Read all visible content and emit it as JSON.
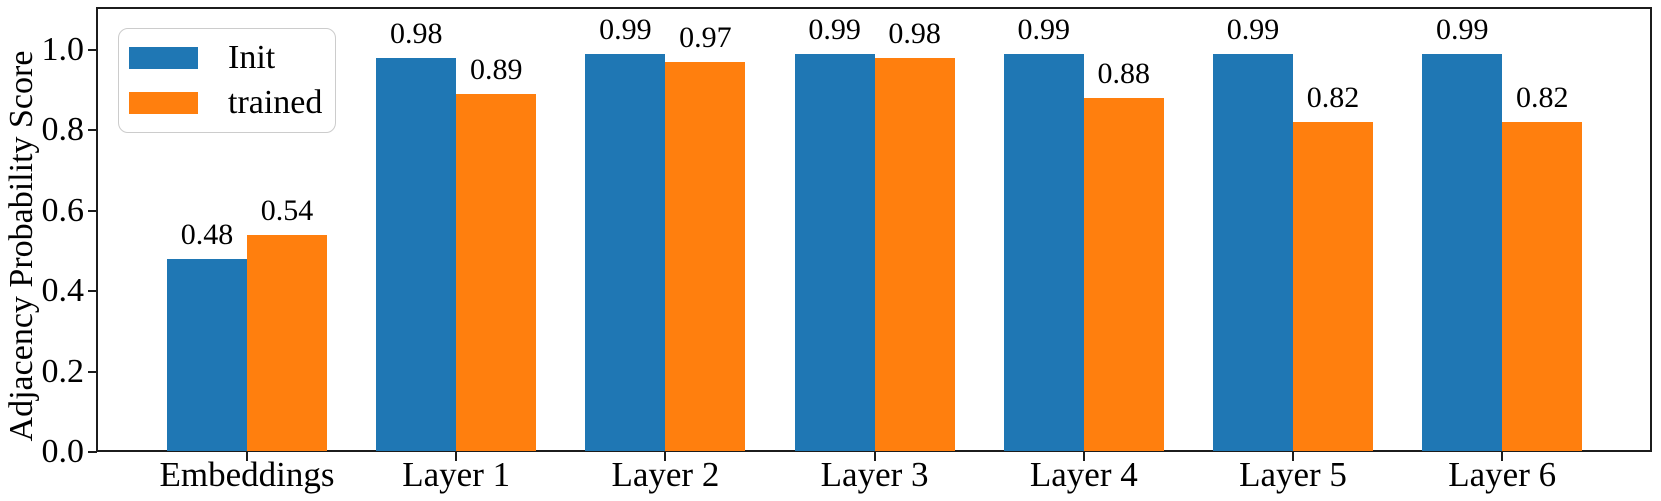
{
  "chart_data": {
    "type": "bar",
    "title": "",
    "xlabel": "",
    "ylabel": "Adjacency Probability Score",
    "categories": [
      "Embeddings",
      "Layer 1",
      "Layer 2",
      "Layer 3",
      "Layer 4",
      "Layer 5",
      "Layer 6"
    ],
    "series": [
      {
        "name": "Init",
        "color": "#1f77b4",
        "values": [
          0.48,
          0.98,
          0.99,
          0.99,
          0.99,
          0.99,
          0.99
        ]
      },
      {
        "name": "trained",
        "color": "#ff7f0e",
        "values": [
          0.54,
          0.89,
          0.97,
          0.98,
          0.88,
          0.82,
          0.82
        ]
      }
    ],
    "bar_value_labels": [
      [
        "0.48",
        "0.98",
        "0.99",
        "0.99",
        "0.99",
        "0.99",
        "0.99"
      ],
      [
        "0.54",
        "0.89",
        "0.97",
        "0.98",
        "0.88",
        "0.82",
        "0.82"
      ]
    ],
    "ylim": [
      0.0,
      1.1
    ],
    "yticks": [
      "0.0",
      "0.2",
      "0.4",
      "0.6",
      "0.8",
      "1.0"
    ],
    "ytick_values": [
      0.0,
      0.2,
      0.4,
      0.6,
      0.8,
      1.0
    ],
    "legend": {
      "position": "upper left",
      "entries": [
        "Init",
        "trained"
      ]
    },
    "grid": false,
    "frame": true
  }
}
